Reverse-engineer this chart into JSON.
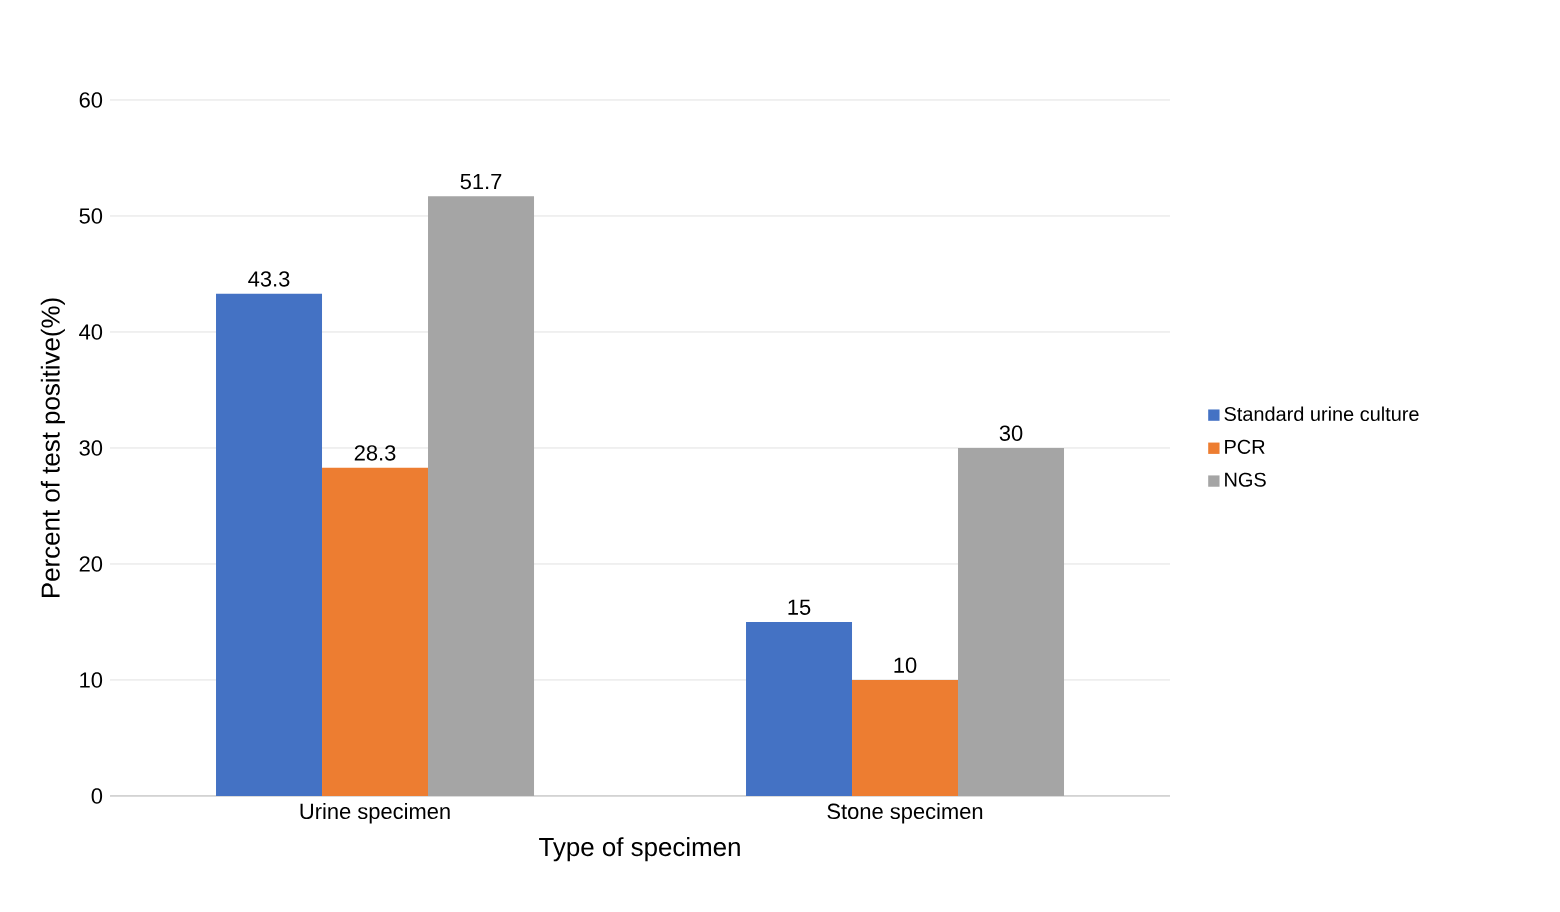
{
  "chart_data": {
    "type": "bar",
    "xlabel": "Type of specimen",
    "ylabel": "Percent of test positive(%)",
    "categories": [
      "Urine specimen",
      "Stone specimen"
    ],
    "series": [
      {
        "name": "Standard urine culture",
        "color": "#4472c4",
        "values": [
          43.3,
          15
        ]
      },
      {
        "name": "PCR",
        "color": "#ed7d31",
        "values": [
          28.3,
          10
        ]
      },
      {
        "name": "NGS",
        "color": "#a5a5a5",
        "values": [
          51.7,
          30
        ]
      }
    ],
    "ylim": [
      0,
      60
    ],
    "yticks": [
      0,
      10,
      20,
      30,
      40,
      50,
      60
    ],
    "grid": "y",
    "legend": "right",
    "data_labels": true
  }
}
